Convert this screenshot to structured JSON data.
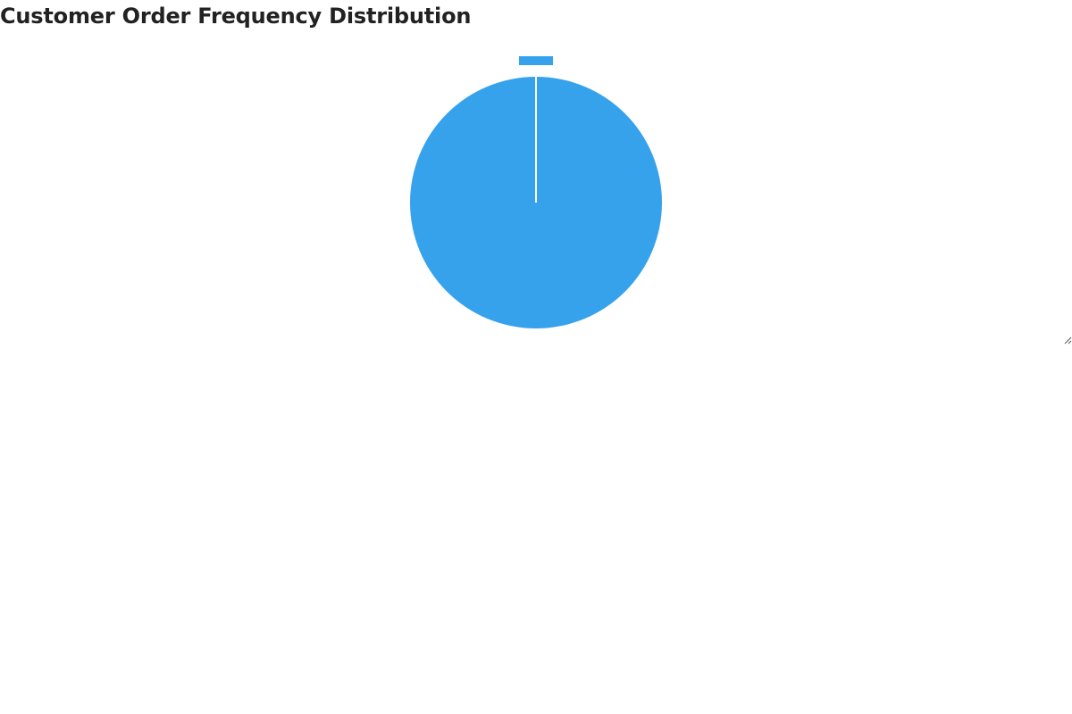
{
  "page": {
    "title": "Customer Order Frequency Distribution"
  },
  "chart_data": {
    "type": "pie",
    "title": "Customer Order Frequency Distribution",
    "categories": [
      ""
    ],
    "values": [
      1
    ],
    "colors": [
      "#36a2eb"
    ],
    "slice_border_color": "#ffffff",
    "legend": {
      "placement": "top"
    }
  }
}
